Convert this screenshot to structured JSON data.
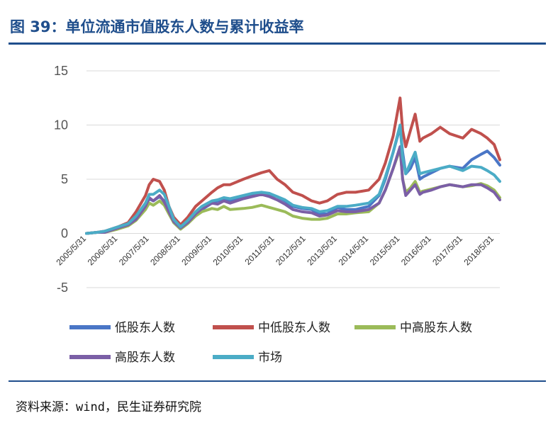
{
  "header": {
    "title": "图 39：单位流通市值股东人数与累计收益率"
  },
  "footer": {
    "source": "资料来源：wind，民生证券研究院"
  },
  "colors": {
    "accent": "#1f4e8c"
  },
  "chart_data": {
    "type": "line",
    "title": "",
    "xlabel": "",
    "ylabel": "",
    "ylim": [
      -5,
      15
    ],
    "yticks": [
      "15",
      "10",
      "5",
      "0",
      "-5"
    ],
    "categories": [
      "2005/5/31",
      "2006/5/31",
      "2007/5/31",
      "2008/5/31",
      "2009/5/31",
      "2010/5/31",
      "2011/5/31",
      "2012/5/31",
      "2013/5/31",
      "2014/5/31",
      "2015/5/31",
      "2016/5/31",
      "2017/5/31",
      "2018/5/31"
    ],
    "x": [
      2005.42,
      2005.75,
      2006.0,
      2006.42,
      2006.75,
      2007.0,
      2007.3,
      2007.42,
      2007.55,
      2007.75,
      2007.9,
      2008.05,
      2008.2,
      2008.42,
      2008.65,
      2008.9,
      2009.1,
      2009.42,
      2009.6,
      2009.8,
      2010.0,
      2010.42,
      2010.7,
      2011.0,
      2011.25,
      2011.5,
      2011.75,
      2012.0,
      2012.3,
      2012.6,
      2012.85,
      2013.1,
      2013.42,
      2013.7,
      2014.0,
      2014.42,
      2014.75,
      2014.95,
      2015.2,
      2015.42,
      2015.5,
      2015.6,
      2015.75,
      2015.9,
      2016.05,
      2016.15,
      2016.42,
      2016.7,
      2017.0,
      2017.42,
      2017.7,
      2018.0,
      2018.2,
      2018.42,
      2018.6
    ],
    "series": [
      {
        "name": "低股东人数",
        "color": "#4a76c6",
        "values": [
          0,
          0.1,
          0.1,
          0.5,
          0.8,
          1.5,
          2.5,
          3.2,
          3.0,
          3.4,
          3.0,
          2.0,
          1.0,
          0.4,
          1.0,
          1.8,
          2.2,
          2.8,
          3.0,
          3.2,
          3.0,
          3.3,
          3.5,
          3.8,
          3.6,
          3.4,
          3.0,
          2.5,
          2.3,
          2.2,
          1.8,
          1.8,
          2.4,
          2.2,
          2.2,
          2.5,
          3.5,
          5.0,
          7.5,
          9.8,
          7.5,
          5.5,
          6.0,
          7.0,
          5.0,
          5.2,
          5.6,
          6.0,
          6.2,
          6.0,
          6.8,
          7.3,
          7.6,
          7.0,
          6.3
        ]
      },
      {
        "name": "中低股东人数",
        "color": "#c0504d",
        "values": [
          0,
          0.1,
          0.2,
          0.6,
          1.0,
          2.0,
          3.5,
          4.5,
          5.0,
          4.8,
          4.0,
          2.5,
          1.5,
          0.8,
          1.5,
          2.5,
          3.0,
          3.8,
          4.2,
          4.5,
          4.5,
          5.0,
          5.3,
          5.6,
          5.8,
          5.0,
          4.5,
          3.8,
          3.5,
          3.0,
          2.8,
          3.0,
          3.6,
          3.8,
          3.8,
          4.0,
          5.0,
          6.5,
          9.0,
          12.5,
          9.5,
          8.0,
          9.5,
          11.0,
          8.5,
          8.8,
          9.2,
          9.8,
          9.2,
          8.8,
          9.6,
          9.2,
          8.8,
          8.2,
          6.8
        ]
      },
      {
        "name": "中高股东人数",
        "color": "#9bbb59",
        "values": [
          0,
          0.1,
          0.1,
          0.4,
          0.7,
          1.2,
          2.2,
          2.8,
          2.6,
          3.0,
          2.6,
          1.8,
          1.0,
          0.4,
          0.9,
          1.6,
          2.0,
          2.3,
          2.2,
          2.5,
          2.2,
          2.3,
          2.4,
          2.6,
          2.4,
          2.2,
          2.0,
          1.6,
          1.4,
          1.3,
          1.3,
          1.4,
          1.8,
          1.8,
          1.9,
          2.0,
          2.8,
          4.0,
          6.0,
          7.8,
          5.0,
          3.8,
          4.2,
          4.8,
          3.8,
          3.9,
          4.1,
          4.3,
          4.5,
          4.3,
          4.4,
          4.6,
          4.4,
          4.0,
          3.3
        ]
      },
      {
        "name": "高股东人数",
        "color": "#7b5fa6",
        "values": [
          0,
          0.1,
          0.1,
          0.5,
          0.8,
          1.3,
          2.5,
          3.3,
          3.0,
          3.5,
          2.9,
          2.0,
          1.1,
          0.5,
          1.0,
          1.8,
          2.3,
          2.8,
          2.7,
          3.0,
          2.8,
          3.2,
          3.4,
          3.6,
          3.4,
          3.1,
          2.7,
          2.2,
          2.0,
          1.9,
          1.6,
          1.7,
          2.1,
          2.0,
          2.0,
          2.2,
          2.8,
          4.0,
          6.0,
          8.0,
          5.0,
          3.5,
          4.0,
          4.5,
          3.6,
          3.8,
          4.0,
          4.3,
          4.5,
          4.3,
          4.5,
          4.5,
          4.2,
          3.8,
          3.1
        ]
      },
      {
        "name": "市场",
        "color": "#4bacc6",
        "values": [
          0,
          0.1,
          0.2,
          0.6,
          0.9,
          1.6,
          2.8,
          3.6,
          3.6,
          4.0,
          3.6,
          2.5,
          1.3,
          0.6,
          1.2,
          2.0,
          2.5,
          3.0,
          3.1,
          3.3,
          3.2,
          3.5,
          3.7,
          3.8,
          3.7,
          3.4,
          3.1,
          2.6,
          2.4,
          2.3,
          2.0,
          2.1,
          2.5,
          2.5,
          2.6,
          2.8,
          3.6,
          5.2,
          7.5,
          10.0,
          7.0,
          5.5,
          6.5,
          7.5,
          5.5,
          5.6,
          5.8,
          6.0,
          6.2,
          5.8,
          6.2,
          6.1,
          5.8,
          5.4,
          4.8
        ]
      }
    ],
    "grid": true,
    "legend_position": "bottom"
  }
}
